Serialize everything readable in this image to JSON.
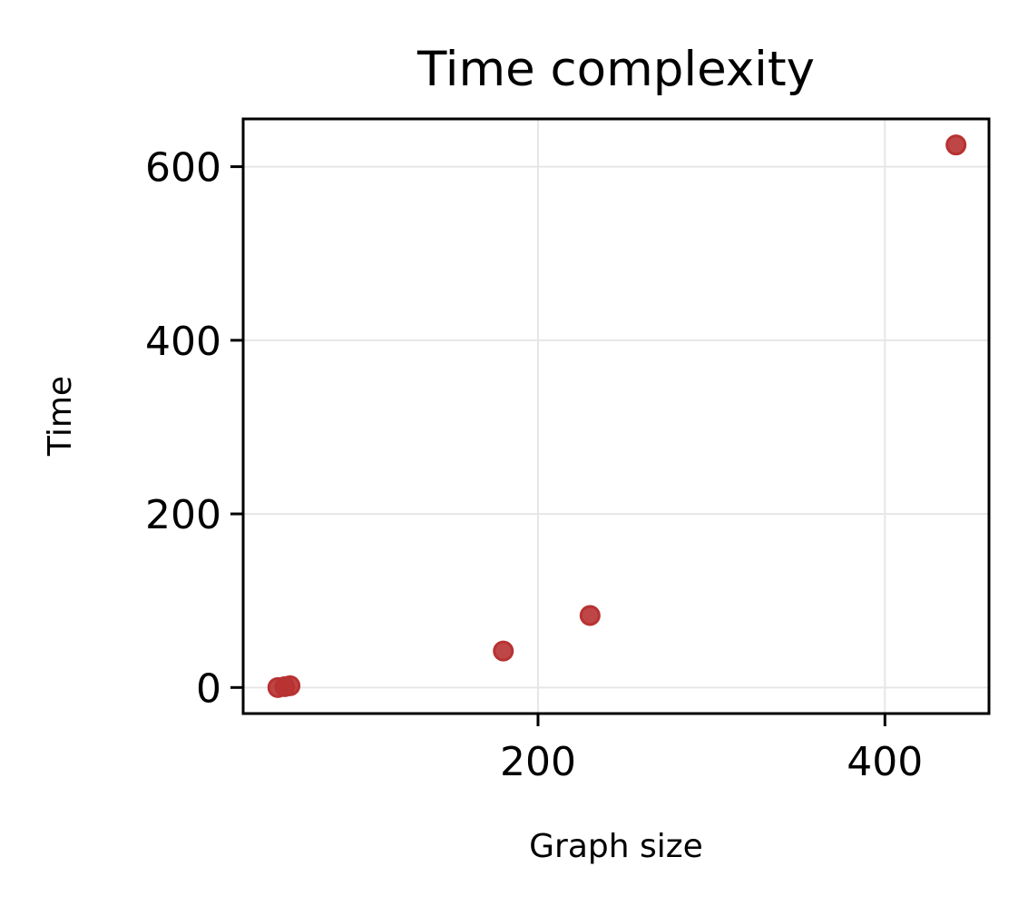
{
  "chart_data": {
    "type": "scatter",
    "title": "Time complexity",
    "xlabel": "Graph size",
    "ylabel": "Time",
    "xlim": [
      30,
      460
    ],
    "ylim": [
      -30,
      655
    ],
    "xticks": [
      200,
      400
    ],
    "yticks": [
      0,
      200,
      400,
      600
    ],
    "grid": true,
    "legend": "none",
    "series": [
      {
        "color": "#b83232",
        "points": [
          {
            "x": 50,
            "y": 0
          },
          {
            "x": 54,
            "y": 1
          },
          {
            "x": 57,
            "y": 2
          },
          {
            "x": 180,
            "y": 42
          },
          {
            "x": 230,
            "y": 83
          },
          {
            "x": 441,
            "y": 625
          }
        ]
      }
    ]
  }
}
